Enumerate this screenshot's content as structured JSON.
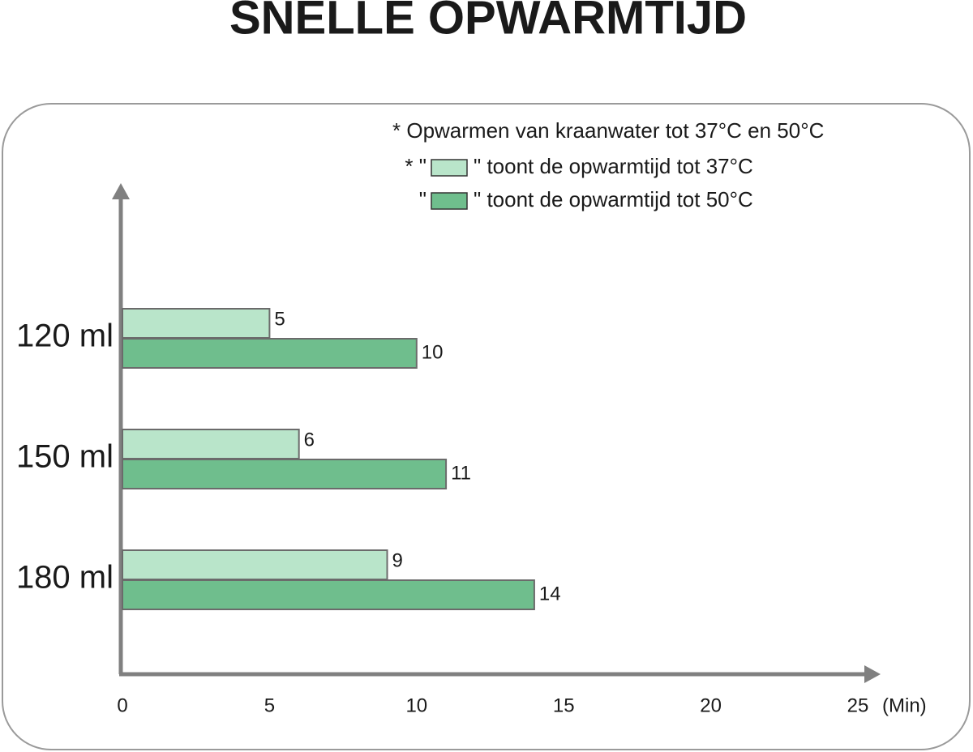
{
  "chart_data": {
    "type": "hbar",
    "title": "SNELLE OPWARMTIJD",
    "note": "* Opwarmen van kraanwater tot 37°C en 50°C",
    "x_label": "(Min)",
    "categories": [
      "120 ml",
      "150 ml",
      "180 ml"
    ],
    "series": [
      {
        "legend_prefix": "* \"",
        "name": "\" toont de opwarmtijd tot 37°C",
        "color": "#b9e5ca",
        "values": [
          5,
          6,
          9
        ]
      },
      {
        "legend_prefix": "\"",
        "name": "\" toont de opwarmtijd tot 50°C",
        "color": "#6fbe8d",
        "values": [
          10,
          11,
          14
        ]
      }
    ],
    "xlim": [
      0,
      25
    ],
    "xticks": [
      0,
      5,
      10,
      15,
      20,
      25
    ]
  }
}
